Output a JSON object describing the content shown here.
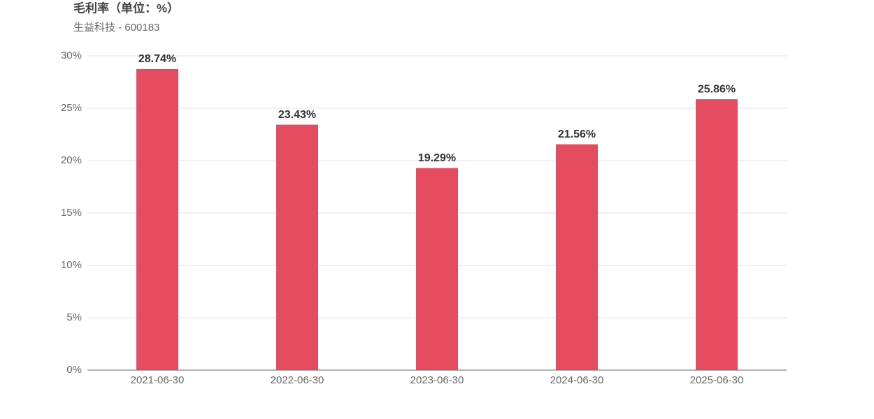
{
  "chart_data": {
    "type": "bar",
    "title": "毛利率（单位：%）",
    "subtitle": "生益科技 - 600183",
    "categories": [
      "2021-06-30",
      "2022-06-30",
      "2023-06-30",
      "2024-06-30",
      "2025-06-30"
    ],
    "values": [
      28.74,
      23.43,
      19.29,
      21.56,
      25.86
    ],
    "value_labels": [
      "28.74%",
      "23.43%",
      "19.29%",
      "21.56%",
      "25.86%"
    ],
    "color": "#e64c5f",
    "ylim": [
      0,
      30
    ],
    "yticks": [
      {
        "value": 0,
        "label": "0%"
      },
      {
        "value": 5,
        "label": "5%"
      },
      {
        "value": 10,
        "label": "10%"
      },
      {
        "value": 15,
        "label": "15%"
      },
      {
        "value": 20,
        "label": "20%"
      },
      {
        "value": 25,
        "label": "25%"
      },
      {
        "value": 30,
        "label": "30%"
      }
    ],
    "grid": true
  }
}
